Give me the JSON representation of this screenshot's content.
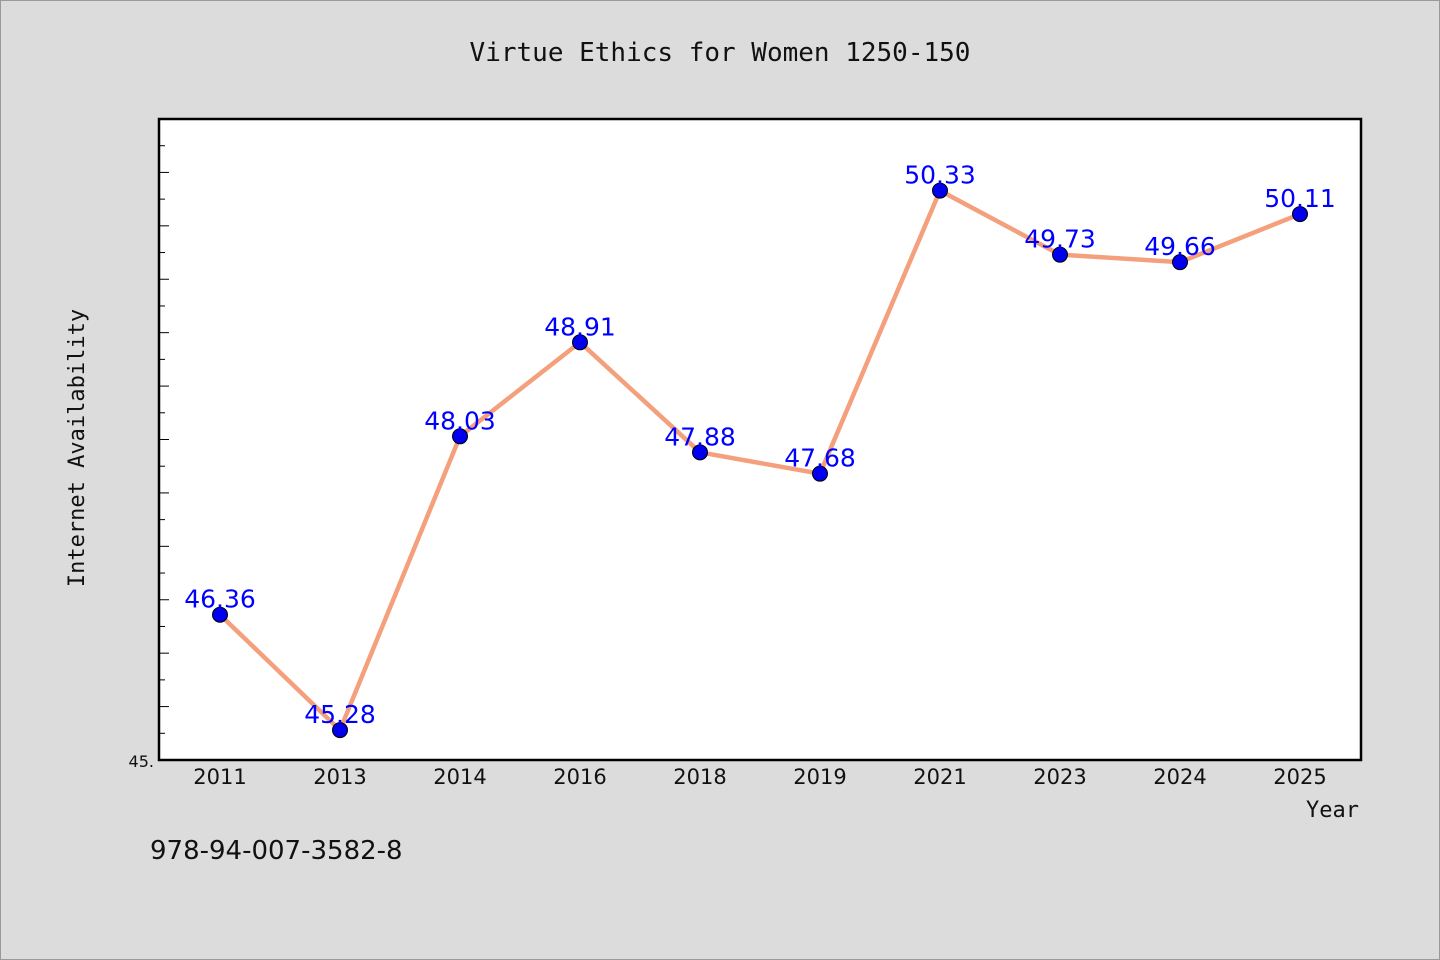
{
  "chart_data": {
    "type": "line",
    "title": "Virtue Ethics for Women 1250-150",
    "xlabel": "Year",
    "ylabel": "Internet Availability",
    "categories": [
      "2011",
      "2013",
      "2014",
      "2016",
      "2018",
      "2019",
      "2021",
      "2023",
      "2024",
      "2025"
    ],
    "series": [
      {
        "values": [
          46.36,
          45.28,
          48.03,
          48.91,
          47.88,
          47.68,
          50.33,
          49.73,
          49.66,
          50.11
        ],
        "labels": [
          "46.36",
          "45.28",
          "48.03",
          "48.91",
          "47.88",
          "47.68",
          "50.33",
          "49.73",
          "49.66",
          "50.11"
        ],
        "line_color": "#f4a07c",
        "marker_color": "#0000ee",
        "label_color": "#0000ff"
      }
    ],
    "ylim": [
      45.0,
      51.0
    ],
    "y_tick_label": "45.",
    "grid": false,
    "legend": "none"
  },
  "footer": {
    "isbn": "978-94-007-3582-8"
  }
}
